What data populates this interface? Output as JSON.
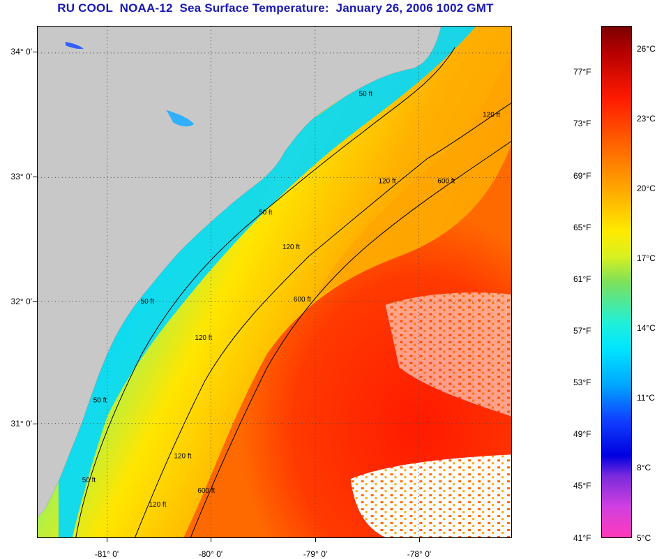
{
  "title": "RU COOL  NOAA-12  Sea Surface Temperature:  January 26, 2006 1002 GMT",
  "map": {
    "latitude_labels": [
      "34° 0'",
      "33° 0'",
      "32° 0'",
      "31° 0'"
    ],
    "longitude_labels": [
      "-81° 0'",
      "-80° 0'",
      "-79° 0'",
      "-78° 0'"
    ],
    "contour_labels": [
      "50 ft",
      "120 ft",
      "600 ft"
    ]
  },
  "colorbar": {
    "fahrenheit_labels": [
      "77°F",
      "73°F",
      "69°F",
      "65°F",
      "61°F",
      "57°F",
      "53°F",
      "49°F",
      "45°F",
      "41°F"
    ],
    "celsius_labels": [
      "26°C",
      "23°C",
      "20°C",
      "17°C",
      "14°C",
      "11°C",
      "8°C",
      "5°C"
    ]
  },
  "colors": {
    "title": "#1919b4",
    "land": "#c8c8c8",
    "warm": "#ff2a00",
    "cool": "#00e0ff"
  }
}
